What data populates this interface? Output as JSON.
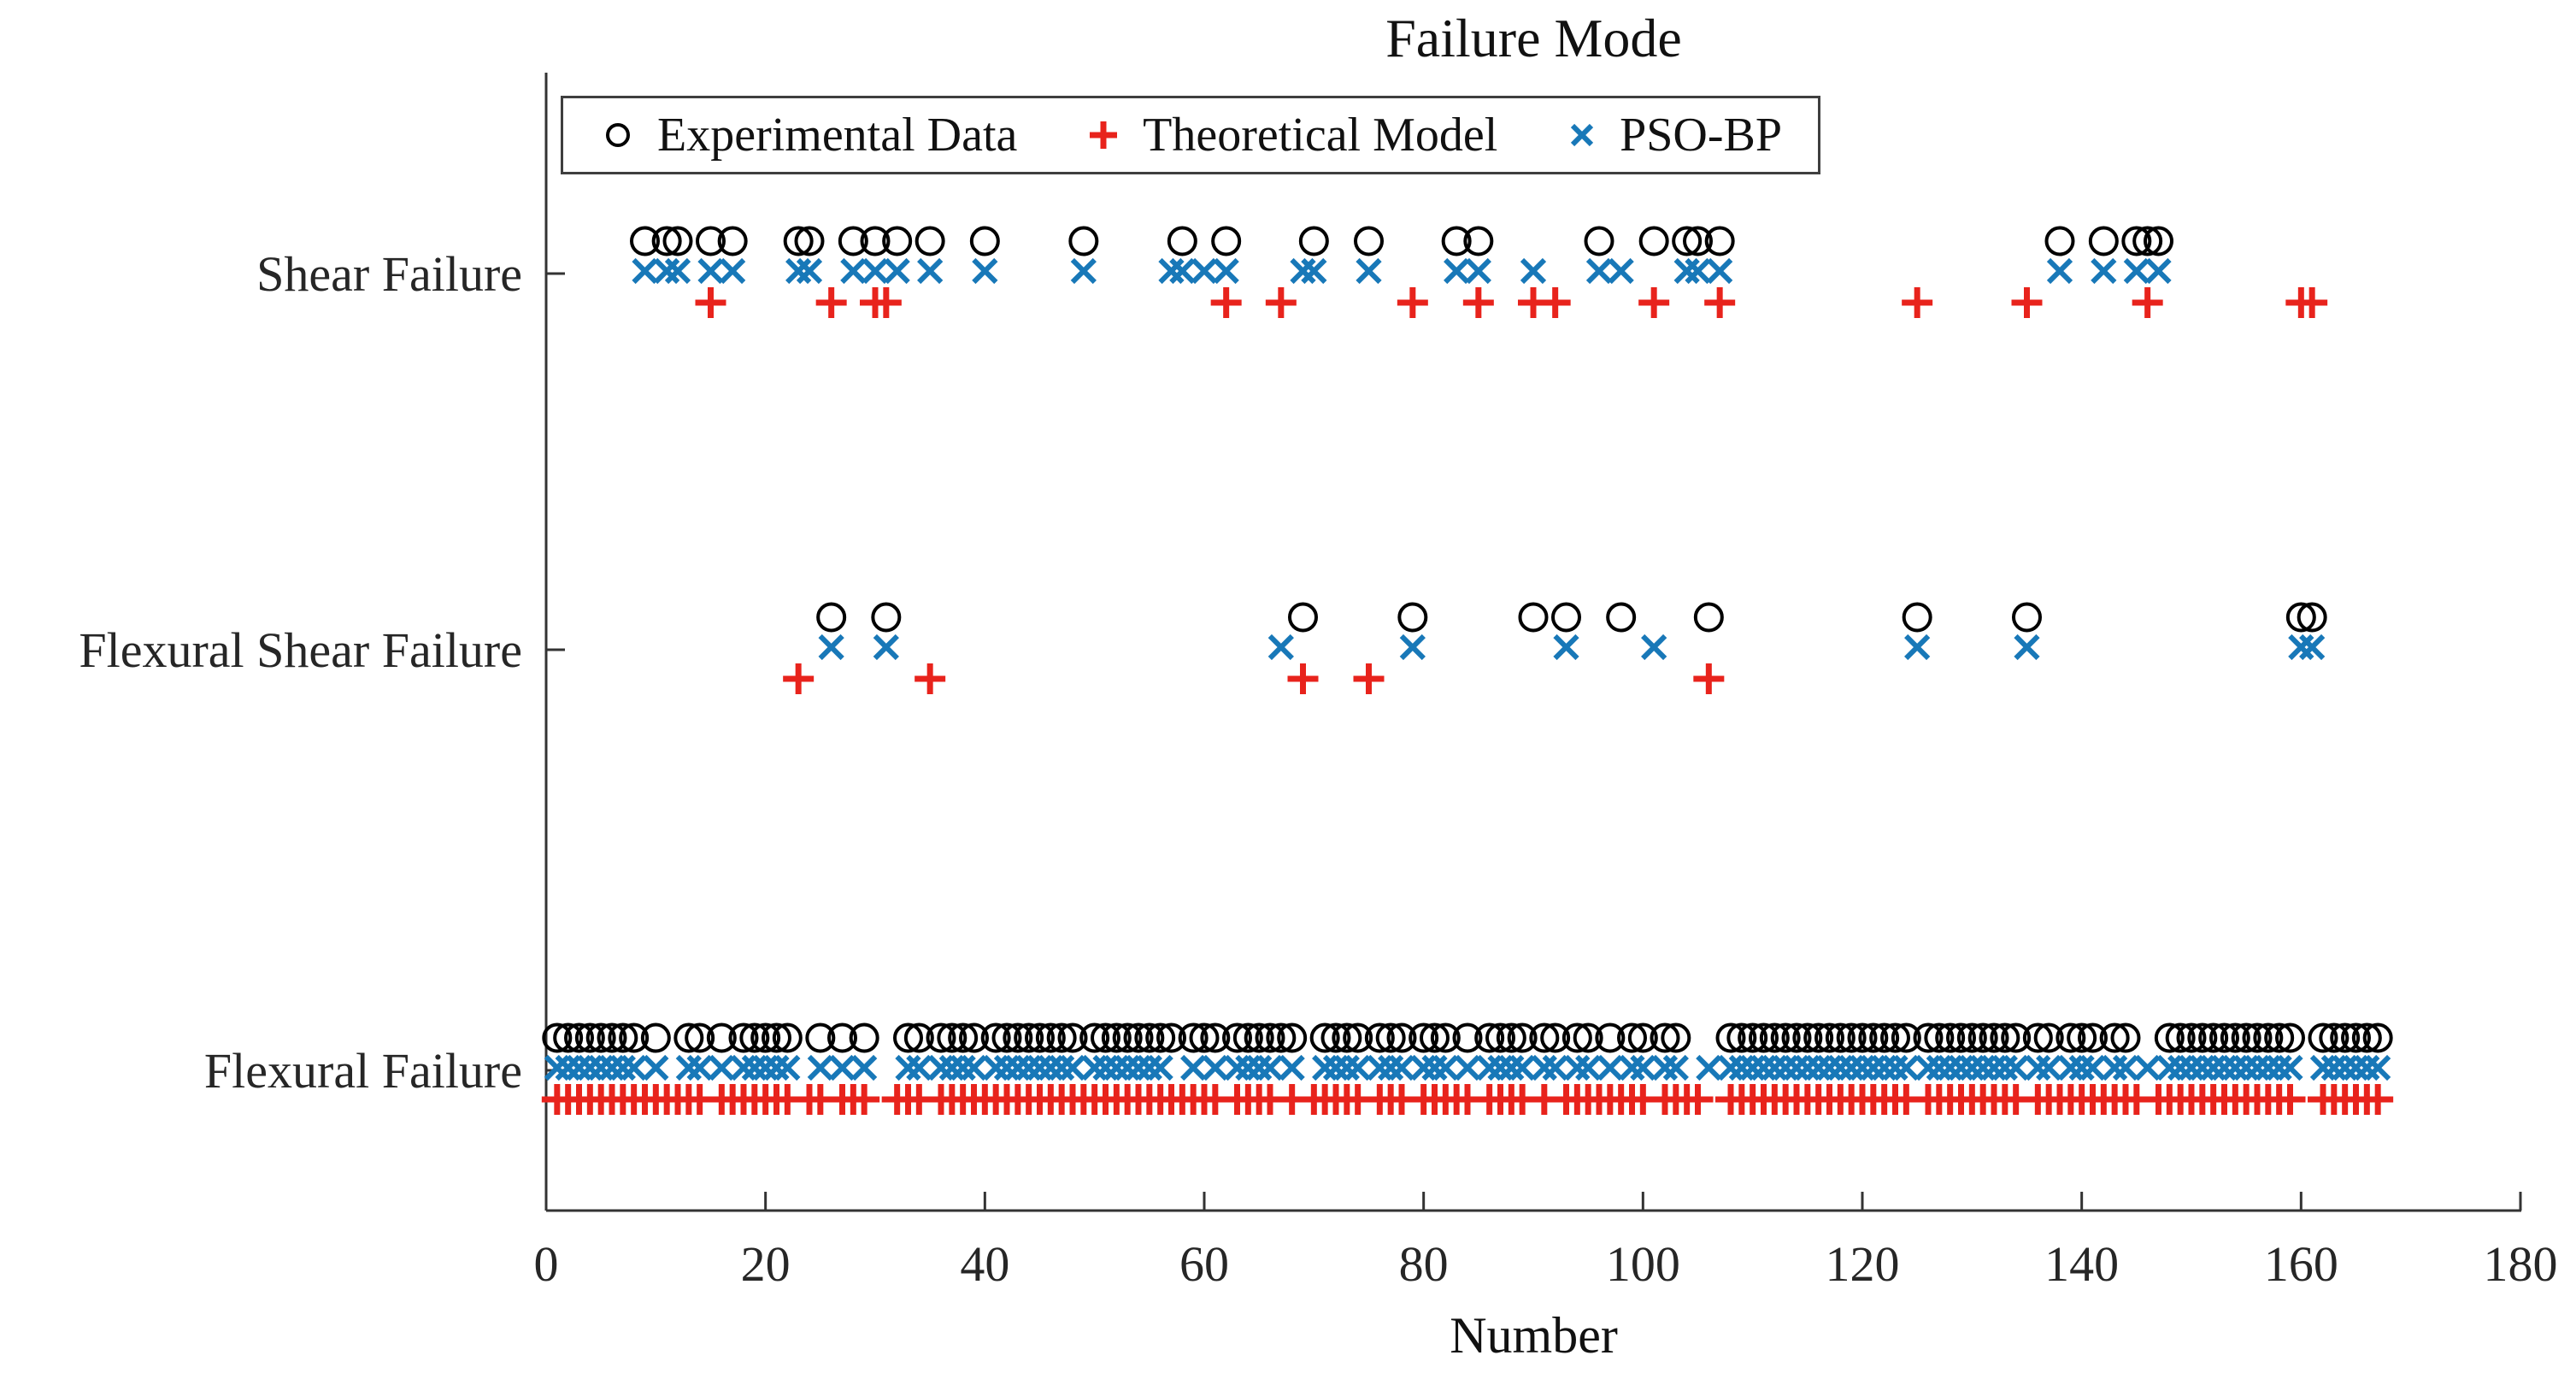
{
  "chart_data": {
    "type": "scatter",
    "title": "Failure Mode",
    "xlabel": "Number",
    "x_range": [
      0,
      180
    ],
    "x_ticks": [
      0,
      20,
      40,
      60,
      80,
      100,
      120,
      140,
      160,
      180
    ],
    "n_samples": 167,
    "grid": false,
    "legend_position": "top-left-inside",
    "categories": [
      {
        "id": "shear",
        "label": "Shear Failure"
      },
      {
        "id": "flexural_shear",
        "label": "Flexural Shear Failure"
      },
      {
        "id": "flexural",
        "label": "Flexural Failure"
      }
    ],
    "flexural_rule": "every sample number 1..n_samples not listed under shear or flexural_shear belongs to flexural",
    "series": [
      {
        "id": "exp",
        "name": "Experimental Data",
        "marker": "circle",
        "color": "#000000",
        "shear": [
          9,
          11,
          12,
          15,
          17,
          23,
          24,
          28,
          30,
          32,
          35,
          40,
          49,
          58,
          62,
          70,
          75,
          83,
          85,
          96,
          101,
          104,
          105,
          107,
          138,
          142,
          145,
          146,
          147
        ],
        "flexural_shear": [
          26,
          31,
          69,
          79,
          90,
          93,
          98,
          106,
          125,
          135,
          160,
          161
        ],
        "flexural": "complement"
      },
      {
        "id": "theo",
        "name": "Theoretical Model",
        "marker": "plus",
        "color": "#e8231c",
        "shear": [
          15,
          26,
          30,
          31,
          62,
          67,
          79,
          85,
          90,
          92,
          101,
          107,
          125,
          135,
          146,
          160,
          161
        ],
        "flexural_shear": [
          23,
          35,
          69,
          75,
          106
        ],
        "flexural": "complement"
      },
      {
        "id": "pso",
        "name": "PSO-BP",
        "marker": "x",
        "color": "#1878b8",
        "shear": [
          9,
          11,
          12,
          15,
          17,
          23,
          24,
          28,
          30,
          32,
          35,
          40,
          49,
          57,
          58,
          60,
          62,
          69,
          70,
          75,
          83,
          85,
          90,
          96,
          98,
          104,
          105,
          107,
          138,
          142,
          145,
          147
        ],
        "flexural_shear": [
          26,
          31,
          67,
          79,
          93,
          101,
          125,
          135,
          160,
          161
        ],
        "flexural": "complement"
      }
    ],
    "axis_color": "#333333",
    "text_color": "#262626"
  },
  "legend": {
    "items": [
      {
        "label": "Experimental Data"
      },
      {
        "label": "Theoretical Model"
      },
      {
        "label": "PSO-BP"
      }
    ]
  }
}
